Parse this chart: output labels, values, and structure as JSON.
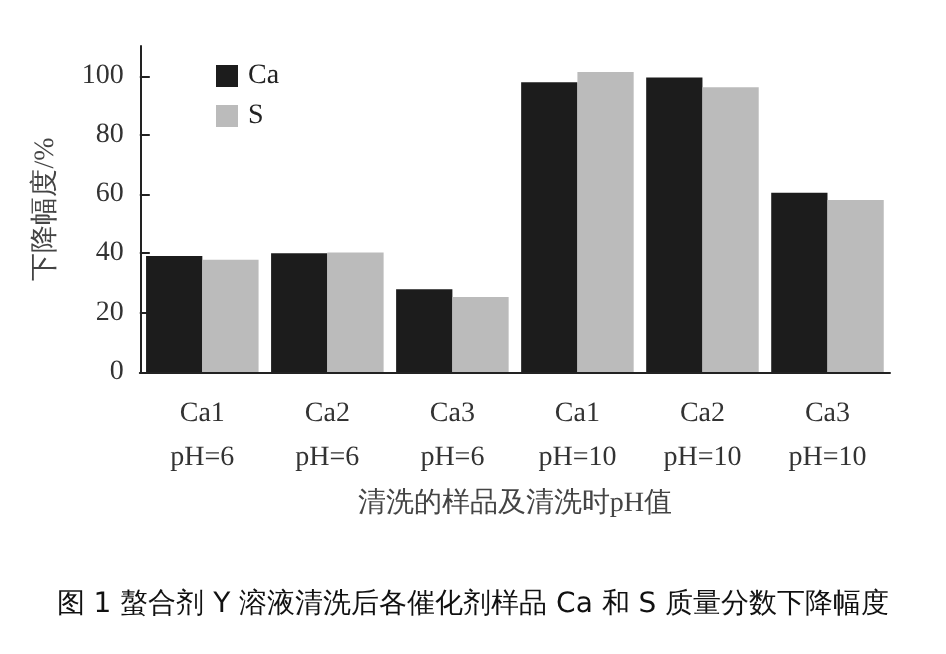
{
  "chart_data": {
    "type": "bar",
    "title": "图 1 螯合剂 Y 溶液清洗后各催化剂样品 Ca 和 S 质量分数下降幅度",
    "xlabel": "清洗的样品及清洗时pH值",
    "ylabel": "下降幅度/%",
    "categories": [
      "Ca1\npH=6",
      "Ca2\npH=6",
      "Ca3\npH=6",
      "Ca1\npH=10",
      "Ca2\npH=10",
      "Ca3\npH=10"
    ],
    "series": [
      {
        "name": "Ca",
        "color": "#1c1c1c",
        "values": [
          39.1,
          40.1,
          27.9,
          97.8,
          99.4,
          60.5
        ]
      },
      {
        "name": "S",
        "color": "#bbbbbb",
        "values": [
          37.9,
          40.3,
          25.3,
          101.2,
          96.1,
          58.0
        ]
      }
    ],
    "ylim": [
      0,
      110
    ],
    "yticks": [
      0,
      20,
      40,
      60,
      80,
      100
    ],
    "grid": false,
    "legend": "top left"
  }
}
